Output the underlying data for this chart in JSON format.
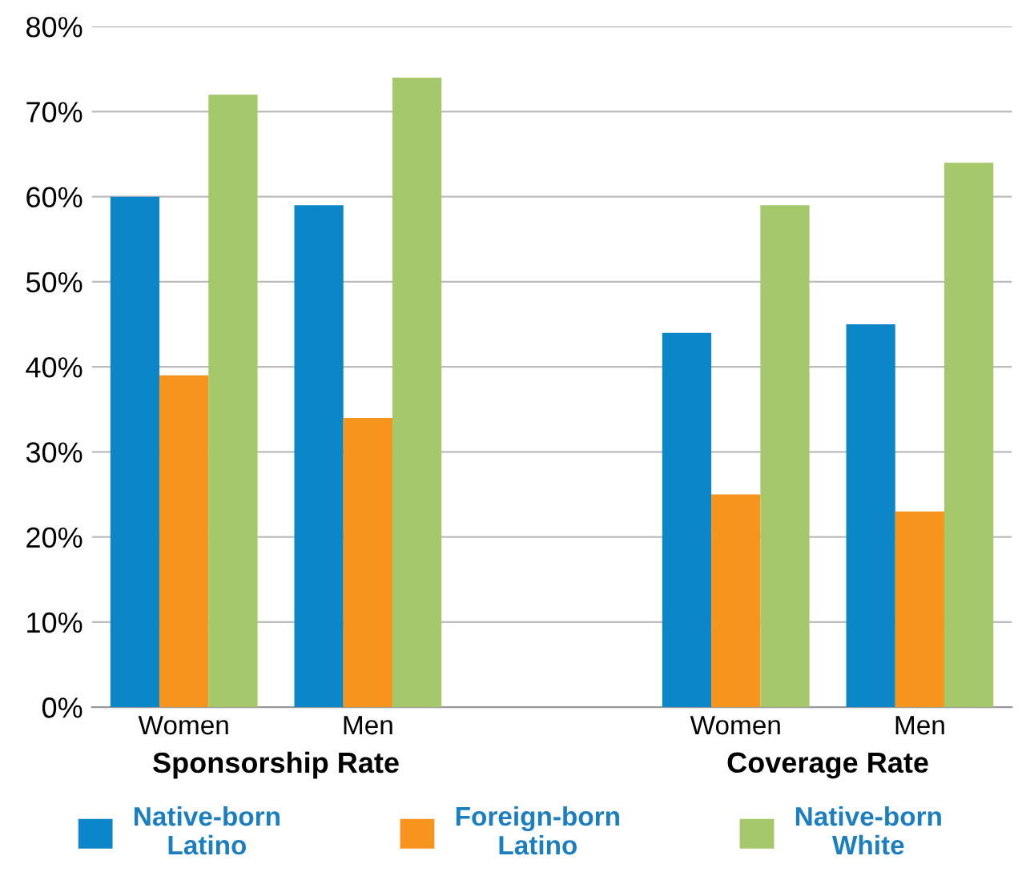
{
  "chart_data": {
    "type": "bar",
    "categories": [
      "Women",
      "Men",
      null,
      "Women",
      "Men"
    ],
    "series": [
      {
        "name": "Native-born\nLatino",
        "color": "#0b87c9",
        "values": [
          60,
          59,
          null,
          44,
          45
        ]
      },
      {
        "name": "Foreign-born\nLatino",
        "color": "#f7941d",
        "values": [
          39,
          34,
          null,
          25,
          23
        ]
      },
      {
        "name": "Native-born\nWhite",
        "color": "#a5c86a",
        "values": [
          72,
          74,
          null,
          59,
          64
        ]
      }
    ],
    "annotations": [
      "Sponsorship Rate",
      "Coverage Rate"
    ],
    "ylim": [
      0,
      80
    ],
    "yticks": [
      {
        "value": 0,
        "label": "0%"
      },
      {
        "value": 10,
        "label": "10%"
      },
      {
        "value": 20,
        "label": "20%"
      },
      {
        "value": 30,
        "label": "30%"
      },
      {
        "value": 40,
        "label": "40%"
      },
      {
        "value": 50,
        "label": "50%"
      },
      {
        "value": 60,
        "label": "60%"
      },
      {
        "value": 70,
        "label": "70%"
      },
      {
        "value": 80,
        "label": "80%"
      }
    ],
    "grid": "y",
    "legend": "bottom"
  }
}
